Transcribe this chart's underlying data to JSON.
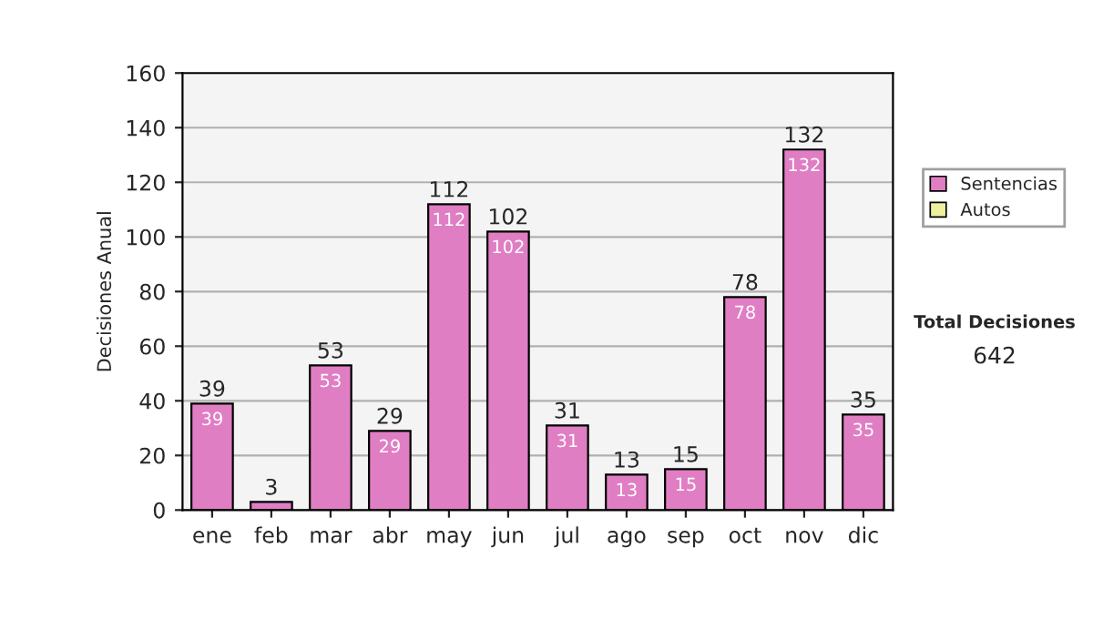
{
  "chart_data": {
    "type": "bar",
    "stacked": true,
    "ylabel": "Decisiones Anual",
    "categories": [
      "ene",
      "feb",
      "mar",
      "abr",
      "may",
      "jun",
      "jul",
      "ago",
      "sep",
      "oct",
      "nov",
      "dic"
    ],
    "series": [
      {
        "name": "Sentencias",
        "color": "#e07ec4",
        "values": [
          39,
          3,
          53,
          29,
          112,
          102,
          31,
          13,
          15,
          78,
          132,
          35
        ],
        "value_labels": [
          "39",
          null,
          "53",
          "29",
          "112",
          "102",
          "31",
          "13",
          "15",
          "78",
          "132",
          "35"
        ]
      },
      {
        "name": "Autos",
        "color": "#eef0a0",
        "values": [
          0,
          0,
          0,
          0,
          0,
          0,
          0,
          0,
          0,
          0,
          0,
          0
        ]
      }
    ],
    "totals": [
      "39",
      "3",
      "53",
      "29",
      "112",
      "102",
      "31",
      "13",
      "15",
      "78",
      "132",
      "35"
    ],
    "ylim": [
      0,
      160
    ],
    "yticks": [
      0,
      20,
      40,
      60,
      80,
      100,
      120,
      140,
      160
    ],
    "grid": "y",
    "legend": "right",
    "annotations": [
      "Total Decisiones",
      "642"
    ]
  }
}
